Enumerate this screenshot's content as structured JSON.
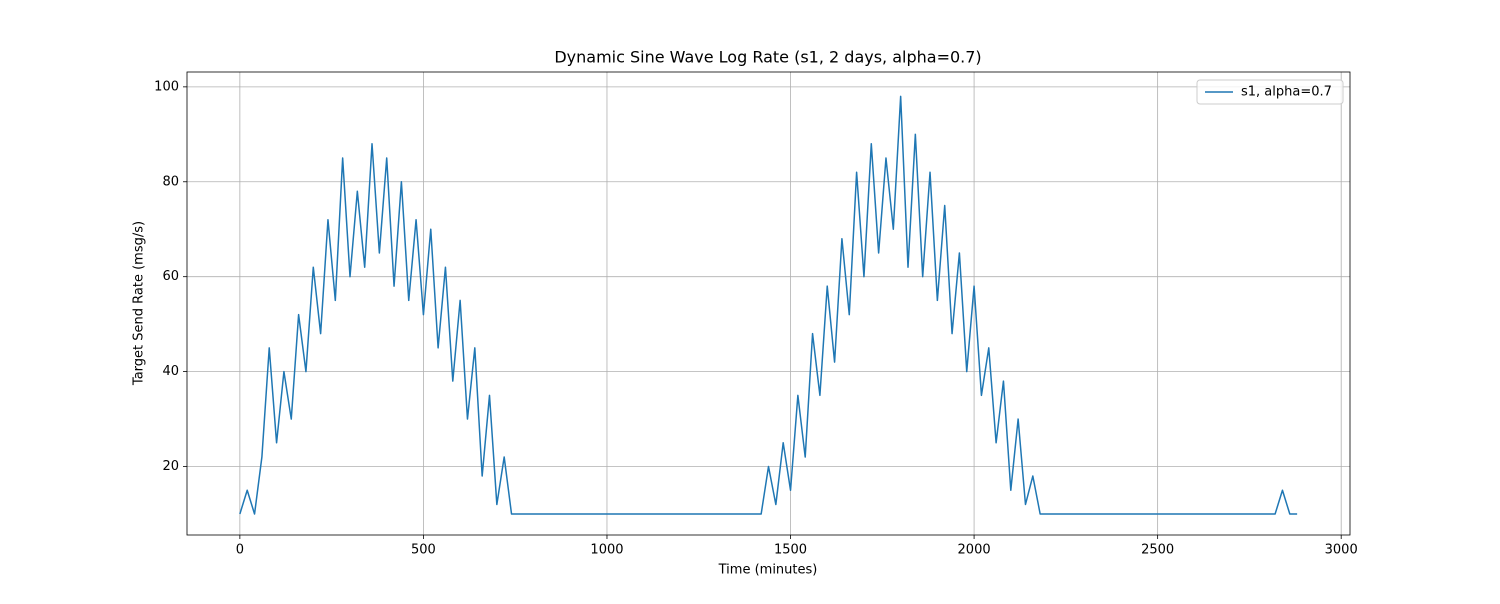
{
  "chart_data": {
    "type": "line",
    "title": "Dynamic Sine Wave Log Rate (s1, 2 days, alpha=0.7)",
    "x_label": "Time (minutes)",
    "y_label": "Target Send Rate (msg/s)",
    "x": [
      0,
      20,
      40,
      60,
      80,
      100,
      120,
      140,
      160,
      180,
      200,
      220,
      240,
      260,
      280,
      300,
      320,
      340,
      360,
      380,
      400,
      420,
      440,
      460,
      480,
      500,
      520,
      540,
      560,
      580,
      600,
      620,
      640,
      660,
      680,
      700,
      720,
      740,
      760,
      780,
      800,
      820,
      840,
      860,
      880,
      900,
      920,
      940,
      960,
      980,
      1000,
      1020,
      1040,
      1060,
      1080,
      1100,
      1120,
      1140,
      1160,
      1180,
      1200,
      1220,
      1240,
      1260,
      1280,
      1300,
      1320,
      1340,
      1360,
      1380,
      1400,
      1420,
      1440,
      1460,
      1480,
      1500,
      1520,
      1540,
      1560,
      1580,
      1600,
      1620,
      1640,
      1660,
      1680,
      1700,
      1720,
      1740,
      1760,
      1780,
      1800,
      1820,
      1840,
      1860,
      1880,
      1900,
      1920,
      1940,
      1960,
      1980,
      2000,
      2020,
      2040,
      2060,
      2080,
      2100,
      2120,
      2140,
      2160,
      2180,
      2200,
      2220,
      2240,
      2260,
      2280,
      2300,
      2320,
      2340,
      2360,
      2380,
      2400,
      2420,
      2440,
      2460,
      2480,
      2500,
      2520,
      2540,
      2560,
      2580,
      2600,
      2620,
      2640,
      2660,
      2680,
      2700,
      2720,
      2740,
      2760,
      2780,
      2800,
      2820,
      2840,
      2860,
      2880
    ],
    "series": [
      {
        "name": "s1, alpha=0.7",
        "color": "#1f77b4",
        "values": [
          10,
          15,
          10,
          22,
          45,
          25,
          40,
          30,
          52,
          40,
          62,
          48,
          72,
          55,
          85,
          60,
          78,
          62,
          88,
          65,
          85,
          58,
          80,
          55,
          72,
          52,
          70,
          45,
          62,
          38,
          55,
          30,
          45,
          18,
          35,
          12,
          22,
          10,
          10,
          10,
          10,
          10,
          10,
          10,
          10,
          10,
          10,
          10,
          10,
          10,
          10,
          10,
          10,
          10,
          10,
          10,
          10,
          10,
          10,
          10,
          10,
          10,
          10,
          10,
          10,
          10,
          10,
          10,
          10,
          10,
          10,
          10,
          20,
          12,
          25,
          15,
          35,
          22,
          48,
          35,
          58,
          42,
          68,
          52,
          82,
          60,
          88,
          65,
          85,
          70,
          98,
          62,
          90,
          60,
          82,
          55,
          75,
          48,
          65,
          40,
          58,
          35,
          45,
          25,
          38,
          15,
          30,
          12,
          18,
          10,
          10,
          10,
          10,
          10,
          10,
          10,
          10,
          10,
          10,
          10,
          10,
          10,
          10,
          10,
          10,
          10,
          10,
          10,
          10,
          10,
          10,
          10,
          10,
          10,
          10,
          10,
          10,
          10,
          10,
          10,
          10,
          10,
          15,
          10,
          10
        ]
      }
    ],
    "xlim": [
      -144,
      3024
    ],
    "ylim": [
      5.57,
      103.13
    ],
    "xticks": [
      0,
      500,
      1000,
      1500,
      2000,
      2500,
      3000
    ],
    "yticks": [
      20,
      40,
      60,
      80,
      100
    ],
    "grid": true,
    "legend": "upper right"
  }
}
